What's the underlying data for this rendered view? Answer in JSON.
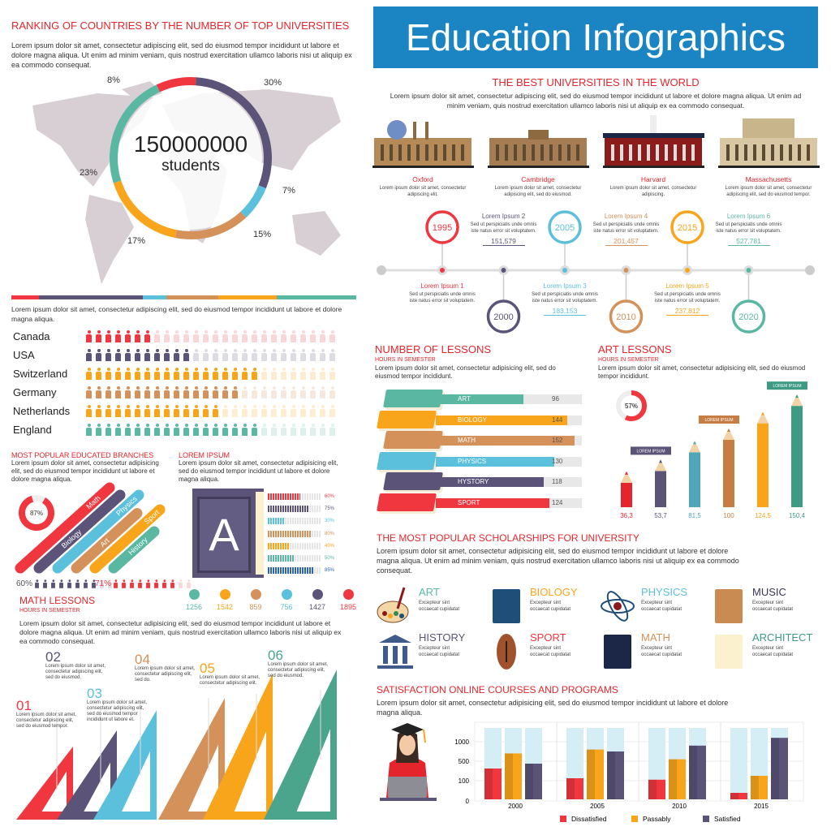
{
  "ranking": {
    "title": "RANKING OF COUNTRIES BY THE NUMBER OF TOP UNIVERSITIES",
    "text": "Lorem ipsum dolor sit amet, consectetur adipiscing elit, sed do eiusmod tempor incididunt ut labore et dolore magna aliqua. Ut enim ad minim veniam, quis nostrud exercitation ullamco laboris nisi ut aliquip ex ea commodo consequat.",
    "total": "150000000",
    "unit": "students",
    "segments": [
      {
        "label": "8%",
        "value": 8,
        "color": "#f0373f"
      },
      {
        "label": "30%",
        "value": 30,
        "color": "#5b5478"
      },
      {
        "label": "7%",
        "value": 7,
        "color": "#5bc0dc"
      },
      {
        "label": "15%",
        "value": 15,
        "color": "#d4915a"
      },
      {
        "label": "17%",
        "value": 17,
        "color": "#f9a51b"
      },
      {
        "label": "23%",
        "value": 23,
        "color": "#5ab8a2"
      }
    ]
  },
  "countries": {
    "text": "Lorem ipsum dolor sit amet, consectetur adipiscing elit, sed do eiusmod tempor incididunt ut labore et dolore magna aliqua.",
    "total": 26,
    "rows": [
      {
        "name": "Canada",
        "filled": 7,
        "color": "#f0373f"
      },
      {
        "name": "USA",
        "filled": 11,
        "color": "#5b5478"
      },
      {
        "name": "Switzerland",
        "filled": 18,
        "color": "#f9a51b"
      },
      {
        "name": "Germany",
        "filled": 16,
        "color": "#d4915a"
      },
      {
        "name": "Netherlands",
        "filled": 14,
        "color": "#f9a51b"
      },
      {
        "name": "England",
        "filled": 18,
        "color": "#5ab8a2"
      }
    ]
  },
  "branches": {
    "title": "MOST POPULAR EDUCATED BRANCHES",
    "text": "Lorem ipsum dolor sit amet, consectetur adipisicing elit, sed do eiusmod tempor incididunt ut labore et dolore magna aliqua.",
    "donut": "87%",
    "donut_value": 87,
    "items": [
      {
        "label": "Math",
        "color": "#f0373f"
      },
      {
        "label": "Biology",
        "color": "#5b5478"
      },
      {
        "label": "Physics",
        "color": "#5bc0dc"
      },
      {
        "label": "Art",
        "color": "#d4915a"
      },
      {
        "label": "Sport",
        "color": "#f9a51b"
      },
      {
        "label": "History",
        "color": "#5ab8a2"
      }
    ],
    "stat1": "60%",
    "stat1_value": 60,
    "stat2": "71%",
    "stat2_value": 71
  },
  "book": {
    "title": "LOREM IPSUM",
    "text": "Lorem ipsum dolor sit amet, consectetur adipisicing elit, sed do eiusmod tempor incididunt ut labore et dolore magna aliqua.",
    "letter": "A",
    "bars": [
      {
        "label": "60%",
        "value": 60,
        "color": "#f0373f"
      },
      {
        "label": "75%",
        "value": 75,
        "color": "#5b5478"
      },
      {
        "label": "30%",
        "value": 30,
        "color": "#5bc0dc"
      },
      {
        "label": "80%",
        "value": 80,
        "color": "#d4915a"
      },
      {
        "label": "40%",
        "value": 40,
        "color": "#f9a51b"
      },
      {
        "label": "50%",
        "value": 50,
        "color": "#5ab8a2"
      },
      {
        "label": "85%",
        "value": 85,
        "color": "#2a63b8"
      }
    ]
  },
  "stats": [
    {
      "value": "1256",
      "color": "#5ab8a2"
    },
    {
      "value": "1542",
      "color": "#f9a51b"
    },
    {
      "value": "859",
      "color": "#d4915a"
    },
    {
      "value": "756",
      "color": "#5bc0dc"
    },
    {
      "value": "1427",
      "color": "#5b5478"
    },
    {
      "value": "1895",
      "color": "#f0373f"
    }
  ],
  "math": {
    "title": "MATH LESSONS",
    "subtitle": "HOURS IN SEMESTER",
    "text": "Lorem ipsum dolor sit amet, consectetur adipisicing elit, sed do eiusmod tempor incididunt ut labore et dolore magna aliqua. Ut enim ad minim veniam, quis nostrud exercitation ullamco laboris nisi ut aliquip ex ea commodo consequat.",
    "steps": [
      {
        "num": "01",
        "text": "Lorem ipsum dolor sit amet, consectetur adipiscing elit, sed do eiusmod tempor.",
        "color": "#f0373f"
      },
      {
        "num": "02",
        "text": "Lorem ipsum dolor sit amet, consectetur adipiscing elit, sed do eiusmod.",
        "color": "#5b5478"
      },
      {
        "num": "03",
        "text": "Lorem ipsum dolor sit amet, consectetur adipiscing elit, sed do eiusmod tempor incididunt ut labore et.",
        "color": "#5bc0dc"
      },
      {
        "num": "04",
        "text": "Lorem ipsum dolor sit amet, consectetur adipiscing elit, sed do.",
        "color": "#d4915a"
      },
      {
        "num": "05",
        "text": "Lorem ipsum dolor sit amet, consectetur adipiscing elit.",
        "color": "#f9a51b"
      },
      {
        "num": "06",
        "text": "Lorem ipsum dolor sit amet, consectetur adipiscing elit, sed do eiusmod.",
        "color": "#4aa58c"
      }
    ]
  },
  "header": {
    "title": "Education Infographics",
    "color": "#1b84c2"
  },
  "universities": {
    "title": "THE BEST UNIVERSITIES IN THE WORLD",
    "text": "Lorem ipsum dolor sit amet, consectetur adipiscing elit, sed do eiusmod tempor incididunt ut labore et dolore magna aliqua. Ut enim ad minim veniam, quis nostrud exercitation ullamco laboris nisi ut aliquip ex ea commodo consequat.",
    "items": [
      {
        "name": "Oxford",
        "text": "Lorem ipsum dolor sit amet, consectetur adipiscing elit."
      },
      {
        "name": "Cambridge",
        "text": "Lorem ipsum dolor sit amet, consectetur adipiscing elit, sed do eiusmod."
      },
      {
        "name": "Harvard",
        "text": "Lorem ipsum dolor sit amet, consectetur adipiscing."
      },
      {
        "name": "Massachusetts",
        "text": "Lorem ipsum dolor sit amet, consectetur adipiscing elit, sed do eiusmod tempor."
      }
    ]
  },
  "timeline": [
    {
      "year": "1995",
      "label": "Lorem Ipsum 1",
      "text": "Sed ut perspiciatis unde omnis iste natus error sit voluptatem.",
      "value": "",
      "color": "#f0373f"
    },
    {
      "year": "2000",
      "label": "Lorem Ipsum 2",
      "text": "Sed ut perspiciatis unde omnis iste natus error sit voluptatem.",
      "value": "151,579",
      "color": "#5b5478"
    },
    {
      "year": "2005",
      "label": "Lorem Ipsum 3",
      "text": "Sed ut perspiciatis unde omnis iste natus error sit voluptatem.",
      "value": "183,153",
      "color": "#5bc0dc"
    },
    {
      "year": "2010",
      "label": "Lorem Ipsum 4",
      "text": "Sed ut perspiciatis unde omnis iste natus error sit voluptatem.",
      "value": "201,457",
      "color": "#d4915a"
    },
    {
      "year": "2015",
      "label": "Lorem Ipsum 5",
      "text": "Sed ut perspiciatis unde omnis iste natus error sit voluptatem.",
      "value": "237,812",
      "color": "#f9a51b"
    },
    {
      "year": "2020",
      "label": "Lorem Ipsum 6",
      "text": "Sed ut perspiciatis unde omnis iste natus error sit voluptatem.",
      "value": "527,781",
      "color": "#5ab8a2"
    }
  ],
  "lessons": {
    "title": "NUMBER OF LESSONS",
    "subtitle": "HOURS IN SEMESTER",
    "text": "Lorem ipsum dolor sit amet, consectetur adipisicing elit, sed do eiusmod tempor incididunt.",
    "max": 160,
    "bars": [
      {
        "label": "ART",
        "value": 96,
        "color": "#5ab8a2"
      },
      {
        "label": "BIOLOGY",
        "value": 144,
        "color": "#f9a51b"
      },
      {
        "label": "MATH",
        "value": 152,
        "color": "#d4915a"
      },
      {
        "label": "PHYSICS",
        "value": 130,
        "color": "#5bc0dc"
      },
      {
        "label": "HYSTORY",
        "value": 118,
        "color": "#5b5478"
      },
      {
        "label": "SPORT",
        "value": 124,
        "color": "#f0373f"
      }
    ]
  },
  "art": {
    "title": "ART LESSONS",
    "subtitle": "HOURS IN SEMESTER",
    "text": "Lorem ipsum dolor sit amet, consectetur adipisicing elit, sed do eiusmod tempor incididunt.",
    "ring": "57%",
    "ring_value": 57,
    "flag": "LOREM IPSUM",
    "pencils": [
      {
        "label": "36,3",
        "value": 36.3,
        "color": "#e4262c"
      },
      {
        "label": "53,7",
        "value": 53.7,
        "color": "#5b5478"
      },
      {
        "label": "81,5",
        "value": 81.5,
        "color": "#4ea6b8"
      },
      {
        "label": "100",
        "value": 100,
        "color": "#c57d44"
      },
      {
        "label": "124,5",
        "value": 124.5,
        "color": "#f9a51b"
      },
      {
        "label": "150,4",
        "value": 150.4,
        "color": "#3d9b84"
      }
    ]
  },
  "scholarships": {
    "title": "THE MOST POPULAR SCHOLARSHIPS FOR UNIVERSITY",
    "text": "Lorem ipsum dolor sit amet, consectetur adipisicing elit, sed do eiusmod tempor incididunt ut labore et dolore magna aliqua. Ut enim ad minim veniam, quis nostrud exercitation ullamco laboris nisi ut aliquip ex ea commodo consequat.",
    "items": [
      {
        "name": "ART",
        "text": "Excepteur sint occaecat cupidatat",
        "color": "#5ab8a2",
        "icon": "palette-icon"
      },
      {
        "name": "BIOLOGY",
        "text": "Excepteur sint occaecat cupidatat",
        "color": "#f9a51b",
        "icon": "microscope-icon"
      },
      {
        "name": "PHYSICS",
        "text": "Excepteur sint occaecat cupidatat",
        "color": "#5bc0dc",
        "icon": "atom-icon"
      },
      {
        "name": "MUSIC",
        "text": "Excepteur sint occaecat cupidatat",
        "color": "#3b3555",
        "icon": "harp-icon"
      },
      {
        "name": "HISTORY",
        "text": "Excepteur sint occaecat cupidatat",
        "color": "#5b5478",
        "icon": "museum-icon"
      },
      {
        "name": "SPORT",
        "text": "Excepteur sint occaecat cupidatat",
        "color": "#f0373f",
        "icon": "football-icon"
      },
      {
        "name": "MATH",
        "text": "Excepteur sint occaecat cupidatat",
        "color": "#d4915a",
        "icon": "calculator-icon"
      },
      {
        "name": "ARCHITECT",
        "text": "Excepteur sint occaecat cupidatat",
        "color": "#3d9b84",
        "icon": "blueprint-icon"
      }
    ]
  },
  "chart_data": {
    "type": "bar",
    "title": "SATISFACTION ONLINE COURSES AND PROGRAMS",
    "text": "Lorem ipsum dolor sit amet, consectetur adipisicing elit, sed do eiusmod tempor incididunt ut labore et dolore magna aliqua.",
    "categories": [
      "2000",
      "2005",
      "2010",
      "2015"
    ],
    "yticks": [
      "0",
      "100",
      "500",
      "1000"
    ],
    "series": [
      {
        "name": "Dissatisfied",
        "color": "#f0373f",
        "values": [
          350,
          150,
          120,
          40
        ]
      },
      {
        "name": "Passably",
        "color": "#f9a51b",
        "values": [
          700,
          800,
          550,
          200
        ]
      },
      {
        "name": "Satisfied",
        "color": "#5b5478",
        "values": [
          450,
          750,
          900,
          1100
        ]
      }
    ]
  }
}
